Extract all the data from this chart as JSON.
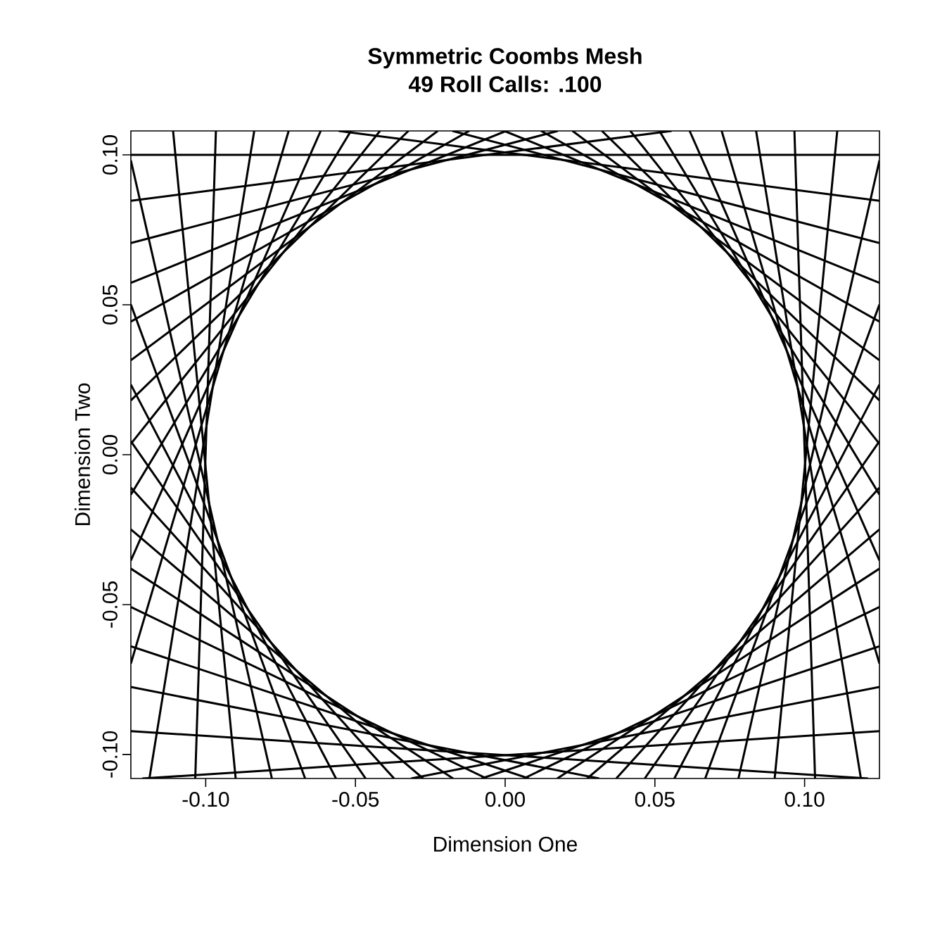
{
  "chart_data": {
    "type": "line",
    "title": "Symmetric Coombs Mesh",
    "subtitle": "49 Roll Calls:    .100",
    "xlabel": "Dimension One",
    "ylabel": "Dimension Two",
    "xlim": [
      -0.125,
      0.125
    ],
    "ylim": [
      -0.108,
      0.108
    ],
    "xticks": [
      {
        "value": -0.1,
        "label": "-0.10"
      },
      {
        "value": -0.05,
        "label": "-0.05"
      },
      {
        "value": 0,
        "label": "0.00"
      },
      {
        "value": 0.05,
        "label": "0.05"
      },
      {
        "value": 0.1,
        "label": "0.10"
      }
    ],
    "yticks": [
      {
        "value": -0.1,
        "label": "-0.10"
      },
      {
        "value": -0.05,
        "label": "-0.05"
      },
      {
        "value": 0,
        "label": "0.00"
      },
      {
        "value": 0.05,
        "label": "0.05"
      },
      {
        "value": 0.1,
        "label": "0.10"
      }
    ],
    "series": [
      {
        "color": "#000000",
        "x": [
          -0.125,
          0.125
        ],
        "values": [
          0.1,
          0.1
        ]
      },
      {
        "color": "#000000",
        "x": [
          -0.125,
          0.0556
        ],
        "values": [
          0.0847,
          0.108
        ]
      },
      {
        "color": "#000000",
        "x": [
          -0.125,
          0.0176
        ],
        "values": [
          0.0706,
          0.108
        ]
      },
      {
        "color": "#000000",
        "x": [
          -0.125,
          0.0003
        ],
        "values": [
          0.0573,
          0.108
        ]
      },
      {
        "color": "#000000",
        "x": [
          -0.125,
          -0.012
        ],
        "values": [
          0.0444,
          0.108
        ]
      },
      {
        "color": "#000000",
        "x": [
          -0.125,
          -0.0225
        ],
        "values": [
          0.0315,
          0.108
        ]
      },
      {
        "color": "#000000",
        "x": [
          -0.125,
          -0.0323
        ],
        "values": [
          0.0181,
          0.108
        ]
      },
      {
        "color": "#000000",
        "x": [
          -0.125,
          -0.0418
        ],
        "values": [
          0.0036,
          0.108
        ]
      },
      {
        "color": "#000000",
        "x": [
          -0.125,
          -0.0515
        ],
        "values": [
          -0.0133,
          0.108
        ]
      },
      {
        "color": "#000000",
        "x": [
          -0.125,
          -0.0616
        ],
        "values": [
          -0.0353,
          0.108
        ]
      },
      {
        "color": "#000000",
        "x": [
          -0.125,
          -0.0723
        ],
        "values": [
          -0.0697,
          0.108
        ]
      },
      {
        "color": "#000000",
        "x": [
          -0.1188,
          -0.0838
        ],
        "values": [
          -0.108,
          0.108
        ]
      },
      {
        "color": "#000000",
        "x": [
          -0.1035,
          -0.0966
        ],
        "values": [
          -0.108,
          0.108
        ]
      },
      {
        "color": "#000000",
        "x": [
          -0.09,
          -0.1109
        ],
        "values": [
          -0.108,
          0.108
        ]
      },
      {
        "color": "#000000",
        "x": [
          -0.0779,
          -0.125
        ],
        "values": [
          -0.108,
          0.0982
        ]
      },
      {
        "color": "#000000",
        "x": [
          -0.0668,
          -0.125
        ],
        "values": [
          -0.108,
          0.0501
        ]
      },
      {
        "color": "#000000",
        "x": [
          -0.0565,
          -0.125
        ],
        "values": [
          -0.108,
          0.0234
        ]
      },
      {
        "color": "#000000",
        "x": [
          -0.0466,
          -0.125
        ],
        "values": [
          -0.108,
          0.0045
        ]
      },
      {
        "color": "#000000",
        "x": [
          -0.0371,
          -0.125
        ],
        "values": [
          -0.108,
          -0.011
        ]
      },
      {
        "color": "#000000",
        "x": [
          -0.0274,
          -0.125
        ],
        "values": [
          -0.108,
          -0.0249
        ]
      },
      {
        "color": "#000000",
        "x": [
          -0.0174,
          -0.125
        ],
        "values": [
          -0.108,
          -0.038
        ]
      },
      {
        "color": "#000000",
        "x": [
          -0.0062,
          -0.125
        ],
        "values": [
          -0.108,
          -0.0508
        ]
      },
      {
        "color": "#000000",
        "x": [
          0.0079,
          -0.125
        ],
        "values": [
          -0.108,
          -0.0639
        ]
      },
      {
        "color": "#000000",
        "x": [
          0.0314,
          -0.125
        ],
        "values": [
          -0.108,
          -0.0775
        ]
      },
      {
        "color": "#000000",
        "x": [
          0.1212,
          -0.125
        ],
        "values": [
          -0.108,
          -0.0922
        ]
      },
      {
        "color": "#000000",
        "x": [
          -0.1212,
          0.125
        ],
        "values": [
          -0.108,
          -0.0922
        ]
      },
      {
        "color": "#000000",
        "x": [
          -0.0314,
          0.125
        ],
        "values": [
          -0.108,
          -0.0775
        ]
      },
      {
        "color": "#000000",
        "x": [
          -0.0079,
          0.125
        ],
        "values": [
          -0.108,
          -0.0639
        ]
      },
      {
        "color": "#000000",
        "x": [
          0.0062,
          0.125
        ],
        "values": [
          -0.108,
          -0.0508
        ]
      },
      {
        "color": "#000000",
        "x": [
          0.0174,
          0.125
        ],
        "values": [
          -0.108,
          -0.038
        ]
      },
      {
        "color": "#000000",
        "x": [
          0.0274,
          0.125
        ],
        "values": [
          -0.108,
          -0.0249
        ]
      },
      {
        "color": "#000000",
        "x": [
          0.0371,
          0.125
        ],
        "values": [
          -0.108,
          -0.011
        ]
      },
      {
        "color": "#000000",
        "x": [
          0.0466,
          0.125
        ],
        "values": [
          -0.108,
          0.0045
        ]
      },
      {
        "color": "#000000",
        "x": [
          0.0565,
          0.125
        ],
        "values": [
          -0.108,
          0.0234
        ]
      },
      {
        "color": "#000000",
        "x": [
          0.0668,
          0.125
        ],
        "values": [
          -0.108,
          0.0501
        ]
      },
      {
        "color": "#000000",
        "x": [
          0.0779,
          0.125
        ],
        "values": [
          -0.108,
          0.0982
        ]
      },
      {
        "color": "#000000",
        "x": [
          0.09,
          0.1109
        ],
        "values": [
          -0.108,
          0.108
        ]
      },
      {
        "color": "#000000",
        "x": [
          0.1035,
          0.0966
        ],
        "values": [
          -0.108,
          0.108
        ]
      },
      {
        "color": "#000000",
        "x": [
          0.1188,
          0.0838
        ],
        "values": [
          -0.108,
          0.108
        ]
      },
      {
        "color": "#000000",
        "x": [
          0.125,
          0.0723
        ],
        "values": [
          -0.0697,
          0.108
        ]
      },
      {
        "color": "#000000",
        "x": [
          0.125,
          0.0616
        ],
        "values": [
          -0.0353,
          0.108
        ]
      },
      {
        "color": "#000000",
        "x": [
          0.125,
          0.0515
        ],
        "values": [
          -0.0133,
          0.108
        ]
      },
      {
        "color": "#000000",
        "x": [
          0.125,
          0.0418
        ],
        "values": [
          0.0036,
          0.108
        ]
      },
      {
        "color": "#000000",
        "x": [
          0.125,
          0.0323
        ],
        "values": [
          0.0181,
          0.108
        ]
      },
      {
        "color": "#000000",
        "x": [
          0.125,
          0.0225
        ],
        "values": [
          0.0315,
          0.108
        ]
      },
      {
        "color": "#000000",
        "x": [
          0.125,
          0.012
        ],
        "values": [
          0.0444,
          0.108
        ]
      },
      {
        "color": "#000000",
        "x": [
          0.125,
          -0.0003
        ],
        "values": [
          0.0573,
          0.108
        ]
      },
      {
        "color": "#000000",
        "x": [
          0.125,
          -0.0176
        ],
        "values": [
          0.0706,
          0.108
        ]
      },
      {
        "color": "#000000",
        "x": [
          0.125,
          -0.0556
        ],
        "values": [
          0.0847,
          0.108
        ]
      }
    ]
  }
}
